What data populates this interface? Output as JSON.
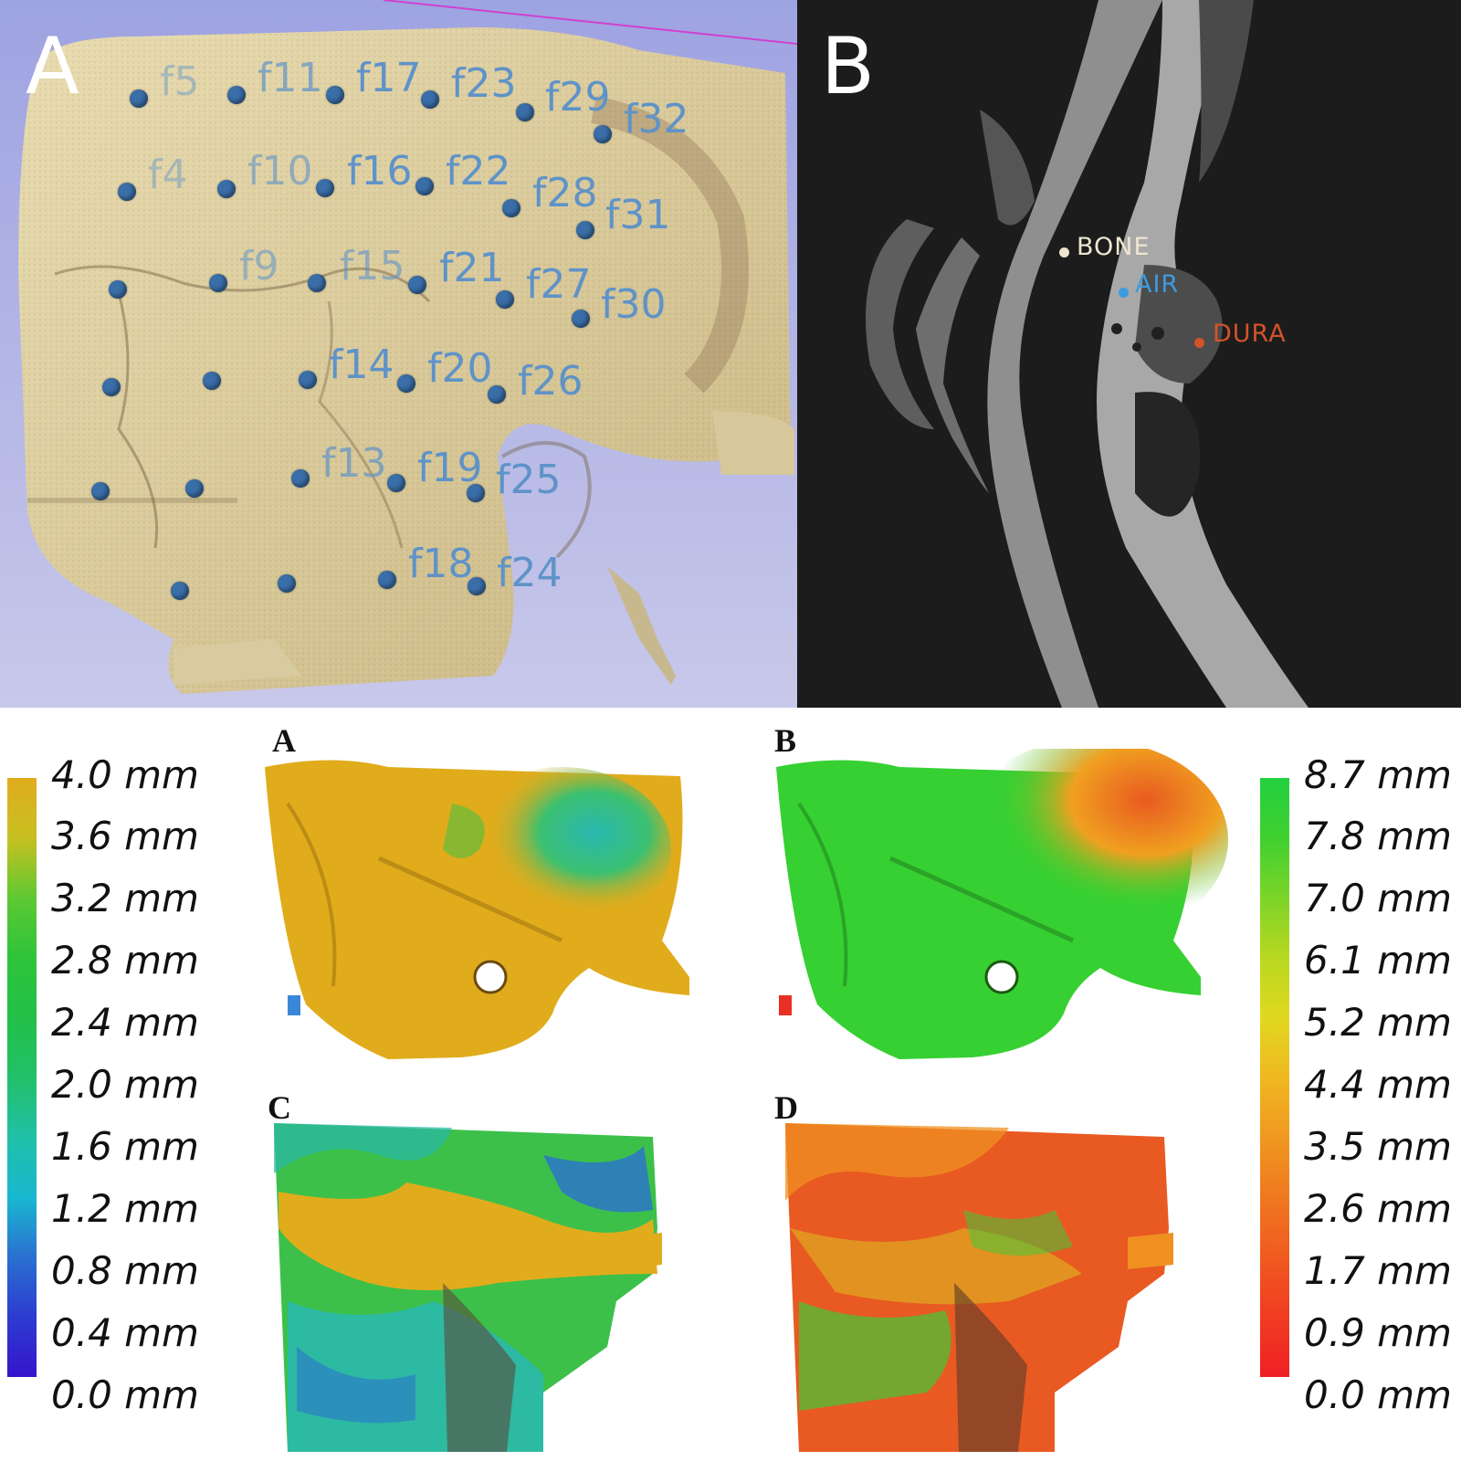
{
  "panel_a": {
    "letter": "A",
    "fiducials": [
      {
        "label": "f5"
      },
      {
        "label": "f11"
      },
      {
        "label": "f17"
      },
      {
        "label": "f23"
      },
      {
        "label": "f29"
      },
      {
        "label": "f32"
      },
      {
        "label": "f4"
      },
      {
        "label": "f10"
      },
      {
        "label": "f16"
      },
      {
        "label": "f22"
      },
      {
        "label": "f28"
      },
      {
        "label": "f31"
      },
      {
        "label": "f9"
      },
      {
        "label": "f15"
      },
      {
        "label": "f21"
      },
      {
        "label": "f27"
      },
      {
        "label": "f30"
      },
      {
        "label": "f14"
      },
      {
        "label": "f20"
      },
      {
        "label": "f26"
      },
      {
        "label": "f13"
      },
      {
        "label": "f19"
      },
      {
        "label": "f25"
      },
      {
        "label": "f18"
      },
      {
        "label": "f24"
      }
    ]
  },
  "panel_b": {
    "letter": "B",
    "points": [
      {
        "label": "BONE",
        "color": "#ece6d0"
      },
      {
        "label": "AIR",
        "color": "#3d9be0"
      },
      {
        "label": "DURA",
        "color": "#d2542a"
      }
    ]
  },
  "maps": {
    "a": {
      "letter": "A"
    },
    "b": {
      "letter": "B"
    },
    "c": {
      "letter": "C"
    },
    "d": {
      "letter": "D"
    }
  },
  "left_scale": {
    "labels": [
      "4.0 mm",
      "3.6 mm",
      "3.2 mm",
      "2.8 mm",
      "2.4 mm",
      "2.0 mm",
      "1.6 mm",
      "1.2 mm",
      "0.8 mm",
      "0.4 mm",
      "0.0 mm"
    ],
    "colors": [
      "#e0ac1c",
      "#c8c020",
      "#5ec832",
      "#2ec43a",
      "#22c048",
      "#22c068",
      "#20c0a8",
      "#18b8d0",
      "#2a70d0",
      "#2c3cd0",
      "#3614cc"
    ]
  },
  "right_scale": {
    "labels": [
      "8.7 mm",
      "7.8 mm",
      "7.0 mm",
      "6.1 mm",
      "5.2 mm",
      "4.4 mm",
      "3.5 mm",
      "2.6 mm",
      "1.7 mm",
      "0.9 mm",
      "0.0 mm"
    ],
    "colors": [
      "#22d040",
      "#40d030",
      "#7cd428",
      "#b8d820",
      "#e0d820",
      "#f0b820",
      "#f09820",
      "#f07820",
      "#f05a20",
      "#f03c22",
      "#f02024"
    ]
  }
}
